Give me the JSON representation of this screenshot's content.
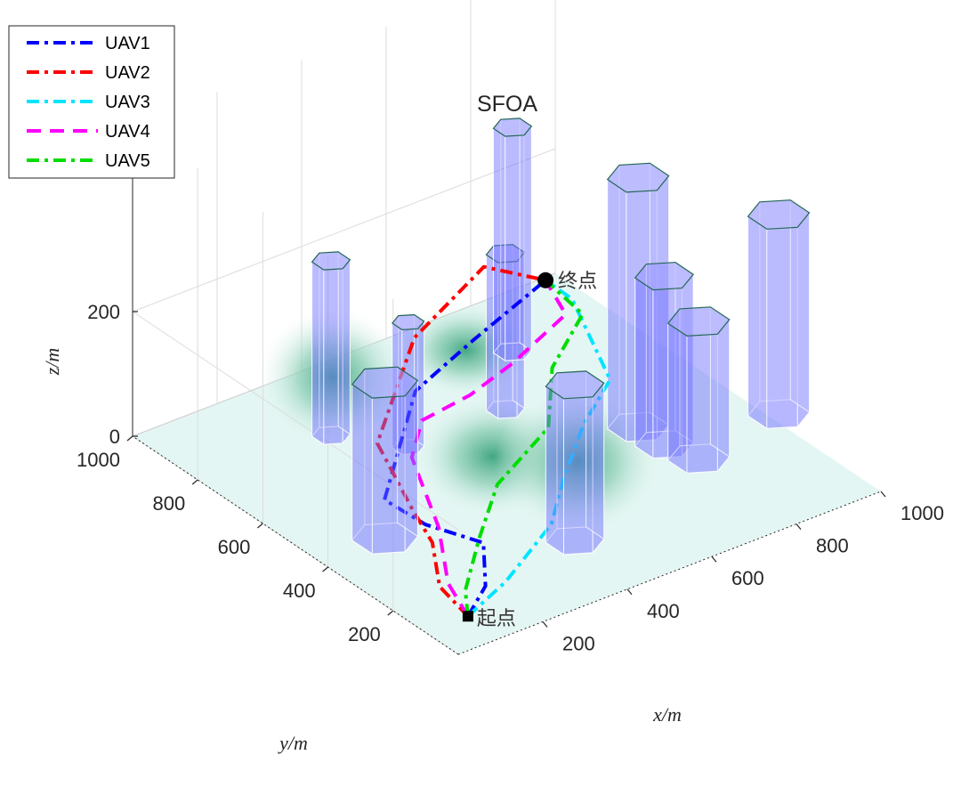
{
  "chart_data": {
    "type": "line3d",
    "title": "SFOA",
    "xlabel": "x/m",
    "ylabel": "y/m",
    "zlabel": "z/m",
    "x_ticks": [
      200,
      400,
      600,
      800,
      1000
    ],
    "y_ticks": [
      200,
      400,
      600,
      800,
      1000
    ],
    "z_ticks": [
      0,
      200
    ],
    "xlim": [
      0,
      1000
    ],
    "ylim": [
      0,
      1000
    ],
    "zlim": [
      0,
      500
    ],
    "start_label": "起点",
    "end_label": "终点",
    "start_point": [
      100,
      100,
      0
    ],
    "end_point": [
      900,
      900,
      50
    ],
    "legend_position": "top-left",
    "series": [
      {
        "name": "UAV1",
        "color": "#0000ff",
        "dash": "dash-dot",
        "points": [
          [
            100,
            100,
            0
          ],
          [
            180,
            150,
            10
          ],
          [
            260,
            260,
            20
          ],
          [
            200,
            360,
            30
          ],
          [
            180,
            460,
            40
          ],
          [
            330,
            560,
            140
          ],
          [
            420,
            610,
            130
          ],
          [
            560,
            680,
            120
          ],
          [
            900,
            900,
            50
          ]
        ]
      },
      {
        "name": "UAV2",
        "color": "#ff0000",
        "dash": "dash-dot",
        "points": [
          [
            100,
            100,
            0
          ],
          [
            110,
            200,
            10
          ],
          [
            170,
            300,
            30
          ],
          [
            200,
            400,
            40
          ],
          [
            240,
            560,
            80
          ],
          [
            420,
            680,
            160
          ],
          [
            600,
            700,
            220
          ],
          [
            900,
            900,
            50
          ]
        ]
      },
      {
        "name": "UAV3",
        "color": "#00e5ff",
        "dash": "dash-dot",
        "points": [
          [
            100,
            100,
            0
          ],
          [
            220,
            140,
            10
          ],
          [
            390,
            220,
            30
          ],
          [
            480,
            300,
            50
          ],
          [
            620,
            420,
            60
          ],
          [
            760,
            520,
            60
          ],
          [
            870,
            780,
            70
          ],
          [
            900,
            900,
            50
          ]
        ]
      },
      {
        "name": "UAV4",
        "color": "#ff00ff",
        "dash": "dash",
        "points": [
          [
            100,
            100,
            0
          ],
          [
            130,
            200,
            10
          ],
          [
            200,
            320,
            40
          ],
          [
            260,
            480,
            80
          ],
          [
            330,
            540,
            100
          ],
          [
            460,
            560,
            100
          ],
          [
            620,
            640,
            80
          ],
          [
            840,
            760,
            60
          ],
          [
            900,
            900,
            50
          ]
        ]
      },
      {
        "name": "UAV5",
        "color": "#00dd00",
        "dash": "dash-dot",
        "points": [
          [
            100,
            100,
            0
          ],
          [
            140,
            160,
            10
          ],
          [
            250,
            260,
            30
          ],
          [
            370,
            360,
            50
          ],
          [
            560,
            450,
            60
          ],
          [
            700,
            620,
            60
          ],
          [
            880,
            760,
            50
          ],
          [
            900,
            900,
            50
          ]
        ]
      }
    ],
    "obstacles": [
      {
        "x": 150,
        "y": 420,
        "r": 62,
        "h": 250
      },
      {
        "x": 430,
        "y": 200,
        "r": 55,
        "h": 250
      },
      {
        "x": 300,
        "y": 780,
        "r": 36,
        "h": 280
      },
      {
        "x": 390,
        "y": 660,
        "r": 30,
        "h": 200
      },
      {
        "x": 620,
        "y": 660,
        "r": 36,
        "h": 250
      },
      {
        "x": 760,
        "y": 820,
        "r": 36,
        "h": 360
      },
      {
        "x": 780,
        "y": 460,
        "r": 58,
        "h": 400
      },
      {
        "x": 780,
        "y": 380,
        "r": 55,
        "h": 270
      },
      {
        "x": 1020,
        "y": 340,
        "r": 58,
        "h": 320
      },
      {
        "x": 800,
        "y": 300,
        "r": 58,
        "h": 220
      }
    ],
    "terrain_peaks": [
      {
        "x": 320,
        "y": 800,
        "h": 180,
        "s": 150
      },
      {
        "x": 420,
        "y": 440,
        "h": 120,
        "s": 160
      },
      {
        "x": 500,
        "y": 280,
        "h": 180,
        "s": 170
      },
      {
        "x": 650,
        "y": 820,
        "h": 70,
        "s": 140
      }
    ]
  }
}
